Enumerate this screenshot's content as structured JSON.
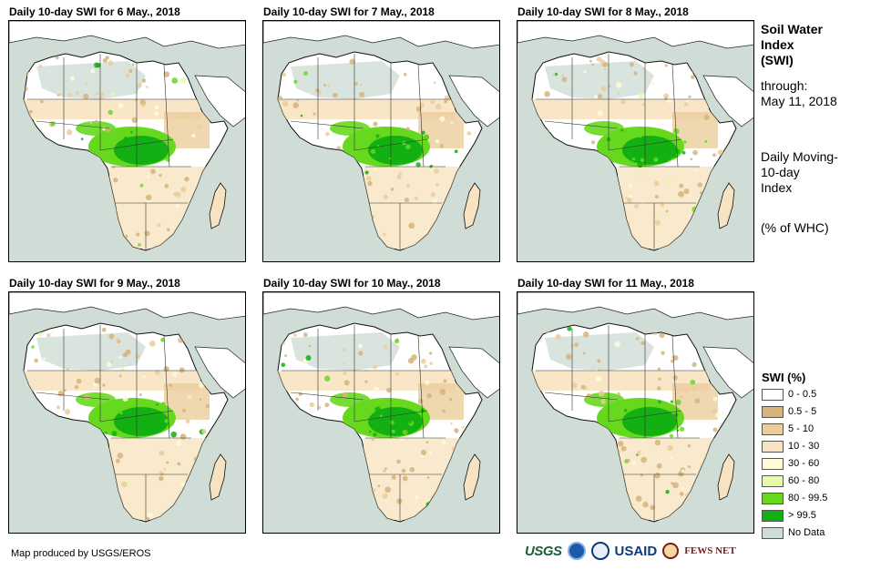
{
  "panels": [
    {
      "title": "Daily 10-day SWI for 6 May., 2018"
    },
    {
      "title": "Daily 10-day SWI for 7 May., 2018"
    },
    {
      "title": "Daily 10-day SWI for 8 May., 2018"
    },
    {
      "title": "Daily 10-day SWI for 9 May., 2018"
    },
    {
      "title": "Daily 10-day SWI for 10 May., 2018"
    },
    {
      "title": "Daily 10-day SWI for 11 May., 2018"
    }
  ],
  "side": {
    "title_line1": "Soil Water",
    "title_line2": "Index",
    "title_line3": "(SWI)",
    "through_label": "through:",
    "through_date": "May 11, 2018",
    "desc_line1": "Daily Moving-",
    "desc_line2": "10-day",
    "desc_line3": "Index",
    "unit": "(% of WHC)"
  },
  "legend": {
    "title": "SWI (%)",
    "items": [
      {
        "label": "0 - 0.5",
        "color": "#ffffff"
      },
      {
        "label": "0.5 - 5",
        "color": "#d6b47c"
      },
      {
        "label": "5 - 10",
        "color": "#ebcd9c"
      },
      {
        "label": "10 - 30",
        "color": "#f7e3c1"
      },
      {
        "label": "30 - 60",
        "color": "#fefbd9"
      },
      {
        "label": "60 - 80",
        "color": "#e8f9a8"
      },
      {
        "label": "80 - 99.5",
        "color": "#66d91e"
      },
      {
        "label": "> 99.5",
        "color": "#12b012"
      },
      {
        "label": "No Data",
        "color": "#cfddd6"
      }
    ]
  },
  "footer": {
    "credit": "Map produced by USGS/EROS",
    "logo_usgs": "USGS",
    "logo_usaid": "USAID",
    "logo_fews": "FEWS NET"
  }
}
